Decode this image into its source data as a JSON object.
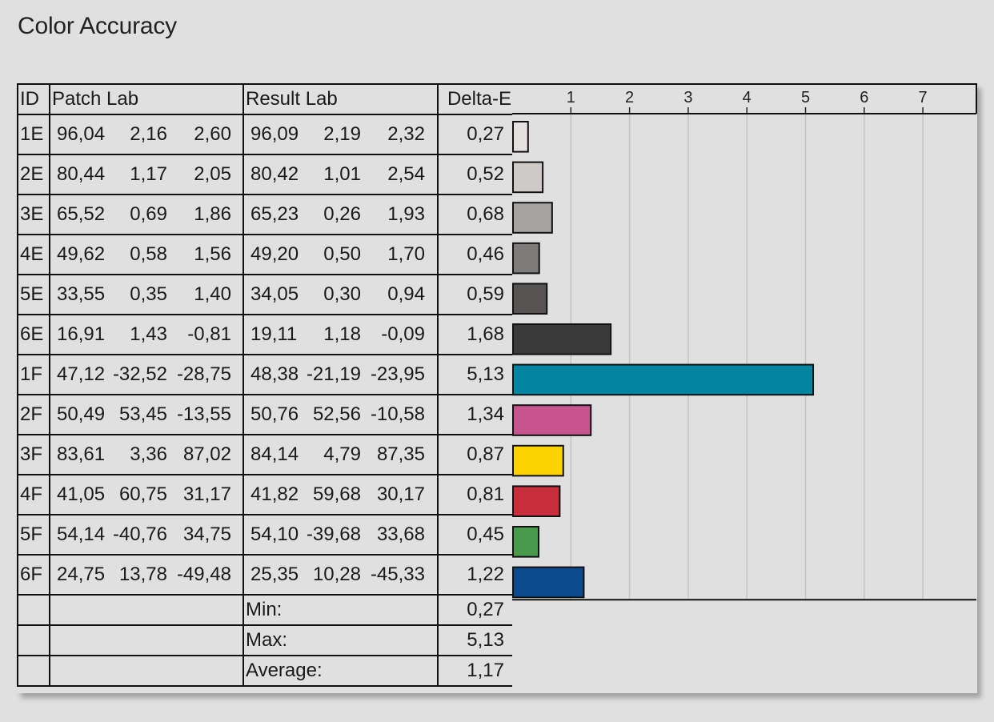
{
  "title": "Color Accuracy",
  "table": {
    "headers": {
      "id": "ID",
      "patch": "Patch Lab",
      "result": "Result Lab",
      "delta": "Delta-E"
    },
    "rows": [
      {
        "id": "1E",
        "patch": [
          "96,04",
          "2,16",
          "2,60"
        ],
        "result": [
          "96,09",
          "2,19",
          "2,32"
        ],
        "de": "0,27"
      },
      {
        "id": "2E",
        "patch": [
          "80,44",
          "1,17",
          "2,05"
        ],
        "result": [
          "80,42",
          "1,01",
          "2,54"
        ],
        "de": "0,52"
      },
      {
        "id": "3E",
        "patch": [
          "65,52",
          "0,69",
          "1,86"
        ],
        "result": [
          "65,23",
          "0,26",
          "1,93"
        ],
        "de": "0,68"
      },
      {
        "id": "4E",
        "patch": [
          "49,62",
          "0,58",
          "1,56"
        ],
        "result": [
          "49,20",
          "0,50",
          "1,70"
        ],
        "de": "0,46"
      },
      {
        "id": "5E",
        "patch": [
          "33,55",
          "0,35",
          "1,40"
        ],
        "result": [
          "34,05",
          "0,30",
          "0,94"
        ],
        "de": "0,59"
      },
      {
        "id": "6E",
        "patch": [
          "16,91",
          "1,43",
          "-0,81"
        ],
        "result": [
          "19,11",
          "1,18",
          "-0,09"
        ],
        "de": "1,68"
      },
      {
        "id": "1F",
        "patch": [
          "47,12",
          "-32,52",
          "-28,75"
        ],
        "result": [
          "48,38",
          "-21,19",
          "-23,95"
        ],
        "de": "5,13"
      },
      {
        "id": "2F",
        "patch": [
          "50,49",
          "53,45",
          "-13,55"
        ],
        "result": [
          "50,76",
          "52,56",
          "-10,58"
        ],
        "de": "1,34"
      },
      {
        "id": "3F",
        "patch": [
          "83,61",
          "3,36",
          "87,02"
        ],
        "result": [
          "84,14",
          "4,79",
          "87,35"
        ],
        "de": "0,87"
      },
      {
        "id": "4F",
        "patch": [
          "41,05",
          "60,75",
          "31,17"
        ],
        "result": [
          "41,82",
          "59,68",
          "30,17"
        ],
        "de": "0,81"
      },
      {
        "id": "5F",
        "patch": [
          "54,14",
          "-40,76",
          "34,75"
        ],
        "result": [
          "54,10",
          "-39,68",
          "33,68"
        ],
        "de": "0,45"
      },
      {
        "id": "6F",
        "patch": [
          "24,75",
          "13,78",
          "-49,48"
        ],
        "result": [
          "25,35",
          "10,28",
          "-45,33"
        ],
        "de": "1,22"
      }
    ],
    "summary": [
      {
        "label": "Min:",
        "value": "0,27"
      },
      {
        "label": "Max:",
        "value": "5,13"
      },
      {
        "label": "Average:",
        "value": "1,17"
      }
    ]
  },
  "chart_data": {
    "type": "bar",
    "orientation": "horizontal",
    "categories": [
      "1E",
      "2E",
      "3E",
      "4E",
      "5E",
      "6E",
      "1F",
      "2F",
      "3F",
      "4F",
      "5F",
      "6F"
    ],
    "values": [
      0.27,
      0.52,
      0.68,
      0.46,
      0.59,
      1.68,
      5.13,
      1.34,
      0.87,
      0.81,
      0.45,
      1.22
    ],
    "colors": [
      "#e6e1e1",
      "#cdcac8",
      "#a5a4a2",
      "#7d7c7a",
      "#555453",
      "#3b3a3b",
      "#0084a0",
      "#c8548e",
      "#fcd200",
      "#c72d3b",
      "#4a9a4c",
      "#0b4a8c"
    ],
    "xticks": [
      1,
      2,
      3,
      4,
      5,
      6,
      7
    ],
    "xlim": [
      0,
      7.9
    ],
    "grid": true,
    "title": "",
    "xlabel": "",
    "ylabel": ""
  }
}
